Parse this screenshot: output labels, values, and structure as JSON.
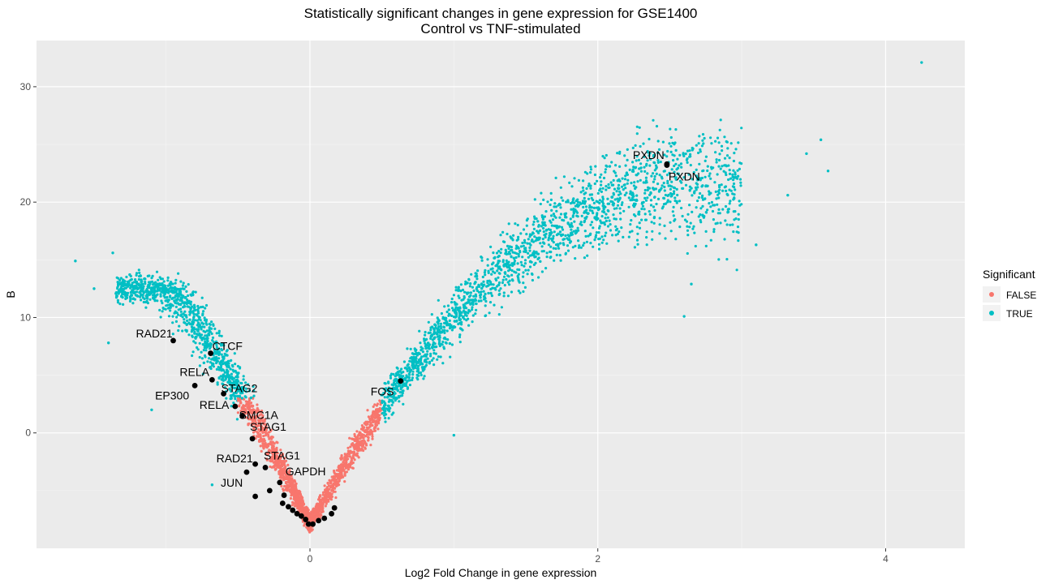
{
  "chart_data": {
    "type": "scatter",
    "title": "Statistically significant changes in gene expression for GSE1400",
    "subtitle": "Control vs TNF-stimulated",
    "xlabel": "Log2 Fold Change in gene expression",
    "ylabel": "B",
    "xlim": [
      -1.9,
      4.55
    ],
    "ylim": [
      -10,
      34
    ],
    "x_ticks": [
      0,
      2,
      4
    ],
    "y_ticks": [
      0,
      10,
      20,
      30
    ],
    "grid": true,
    "legend": {
      "title": "Significant",
      "position": "right",
      "entries": [
        {
          "label": "FALSE",
          "color": "#F8766D"
        },
        {
          "label": "TRUE",
          "color": "#00BFC4"
        }
      ]
    },
    "highlight_color": "#000000",
    "highlighted_genes": [
      {
        "label": "PXDN",
        "x": 2.48,
        "y": 23.3
      },
      {
        "label": "PXDN",
        "x": 2.48,
        "y": 23.2
      },
      {
        "label": "RAD21",
        "x": -0.95,
        "y": 8.0
      },
      {
        "label": "CTCF",
        "x": -0.69,
        "y": 6.9
      },
      {
        "label": "RELA",
        "x": -0.68,
        "y": 4.6
      },
      {
        "label": "STAG2",
        "x": -0.6,
        "y": 3.4
      },
      {
        "label": "EP300",
        "x": -0.8,
        "y": 4.1
      },
      {
        "label": "RELA",
        "x": -0.52,
        "y": 2.3
      },
      {
        "label": "SMC1A",
        "x": -0.47,
        "y": 1.5
      },
      {
        "label": "STAG1",
        "x": -0.4,
        "y": -0.5
      },
      {
        "label": "FOS",
        "x": 0.63,
        "y": 4.5
      },
      {
        "label": "RAD21",
        "x": -0.38,
        "y": -2.7
      },
      {
        "label": "STAG1",
        "x": -0.31,
        "y": -3.0
      },
      {
        "label": "GAPDH",
        "x": -0.21,
        "y": -4.3
      },
      {
        "label": "JUN",
        "x": -0.44,
        "y": -3.4
      }
    ],
    "other_highlighted_points": [
      {
        "x": -0.38,
        "y": -5.5
      },
      {
        "x": -0.28,
        "y": -5.0
      },
      {
        "x": -0.18,
        "y": -5.4
      },
      {
        "x": -0.19,
        "y": -6.1
      },
      {
        "x": -0.15,
        "y": -6.4
      },
      {
        "x": -0.12,
        "y": -6.7
      },
      {
        "x": -0.09,
        "y": -7.0
      },
      {
        "x": -0.06,
        "y": -7.2
      },
      {
        "x": -0.03,
        "y": -7.5
      },
      {
        "x": -0.01,
        "y": -7.9
      },
      {
        "x": 0.02,
        "y": -7.9
      },
      {
        "x": 0.06,
        "y": -7.6
      },
      {
        "x": 0.1,
        "y": -7.4
      },
      {
        "x": 0.15,
        "y": -7.0
      },
      {
        "x": 0.17,
        "y": -6.5
      }
    ],
    "isolated_points": [
      {
        "x": 4.25,
        "y": 32.1,
        "significant": true
      },
      {
        "x": -1.63,
        "y": 14.9,
        "significant": true
      },
      {
        "x": -1.37,
        "y": 15.6,
        "significant": true
      },
      {
        "x": -1.5,
        "y": 12.5,
        "significant": true
      },
      {
        "x": -1.4,
        "y": 7.8,
        "significant": true
      },
      {
        "x": -1.1,
        "y": 2.0,
        "significant": true
      },
      {
        "x": 3.6,
        "y": 22.7,
        "significant": true
      },
      {
        "x": 3.55,
        "y": 25.4,
        "significant": true
      },
      {
        "x": 3.45,
        "y": 24.2,
        "significant": true
      },
      {
        "x": 3.32,
        "y": 20.6,
        "significant": true
      },
      {
        "x": 3.1,
        "y": 16.3,
        "significant": true
      },
      {
        "x": 2.65,
        "y": 12.9,
        "significant": true
      },
      {
        "x": 2.6,
        "y": 10.1,
        "significant": true
      },
      {
        "x": 1.0,
        "y": -0.2,
        "significant": true
      },
      {
        "x": -0.68,
        "y": -4.5,
        "significant": true
      }
    ]
  }
}
